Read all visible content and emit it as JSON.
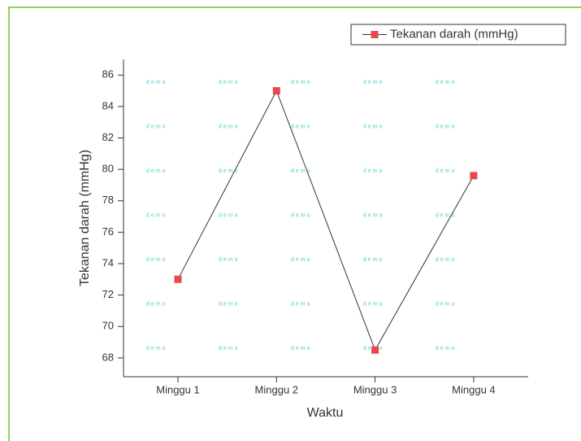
{
  "chart_data": {
    "type": "line",
    "x_label": "Waktu",
    "y_label": "Tekanan darah (mmHg)",
    "categories": [
      "Minggu 1",
      "Minggu 2",
      "Minggu 3",
      "Minggu 4"
    ],
    "series": [
      {
        "name": "Tekanan darah (mmHg)",
        "color": "#e8474b",
        "values": [
          73,
          85,
          68.5,
          79.6
        ]
      }
    ],
    "ylim": [
      66.8,
      87
    ],
    "yticks": [
      68,
      70,
      72,
      74,
      76,
      78,
      80,
      82,
      84,
      86
    ],
    "legend": "top-right",
    "watermark": "demo"
  }
}
